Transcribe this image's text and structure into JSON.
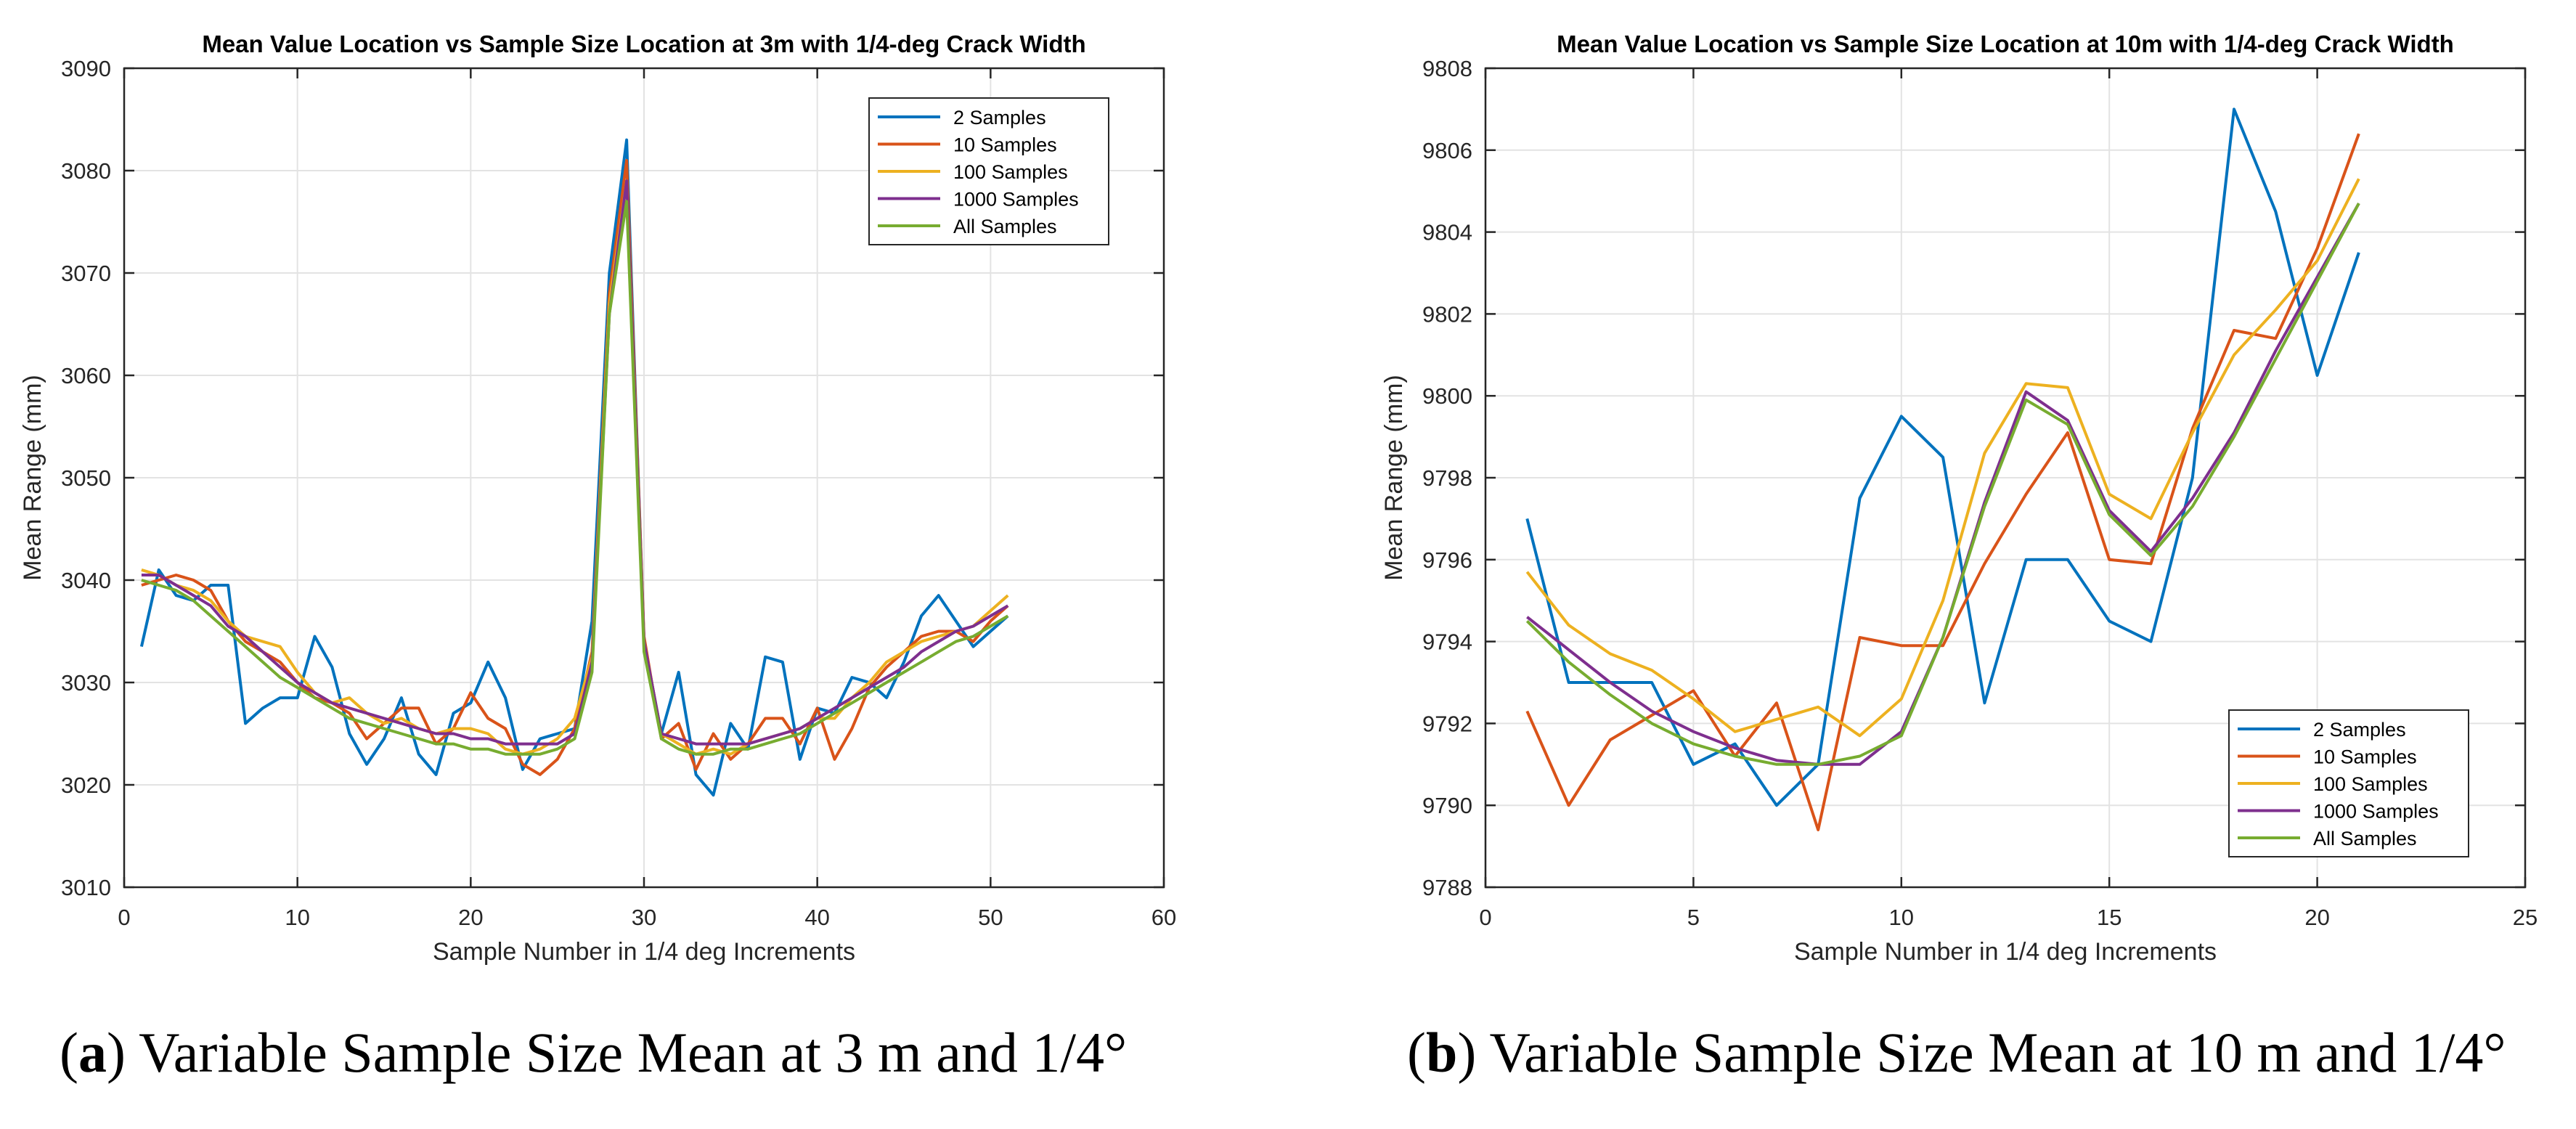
{
  "colors": {
    "s2": "#0072BD",
    "s10": "#D95319",
    "s100": "#EDB120",
    "s1000": "#7E2F8E",
    "sall": "#77AC30"
  },
  "captions": [
    {
      "letter": "a",
      "text": "Variable Sample Size Mean at 3 m and 1/4°"
    },
    {
      "letter": "b",
      "text": "Variable Sample Size Mean at 10 m and 1/4°"
    }
  ],
  "chart_data": [
    {
      "type": "line",
      "title": "Mean Value Location vs Sample Size Location at 3m with 1/4-deg Crack Width",
      "xlabel": "Sample Number in 1/4 deg Increments",
      "ylabel": "Mean Range (mm)",
      "xlim": [
        0,
        60
      ],
      "ylim": [
        3010,
        3090
      ],
      "xticks": [
        0,
        10,
        20,
        30,
        40,
        50,
        60
      ],
      "yticks": [
        3010,
        3020,
        3030,
        3040,
        3050,
        3060,
        3070,
        3080,
        3090
      ],
      "grid": true,
      "legend": "top-right",
      "x": [
        1,
        2,
        3,
        4,
        5,
        6,
        7,
        8,
        9,
        10,
        11,
        12,
        13,
        14,
        15,
        16,
        17,
        18,
        19,
        20,
        21,
        22,
        23,
        24,
        25,
        26,
        27,
        28,
        29,
        30,
        31,
        32,
        33,
        34,
        35,
        36,
        37,
        38,
        39,
        40,
        41,
        42,
        43,
        44,
        45,
        46,
        47,
        48,
        49,
        50,
        51
      ],
      "series": [
        {
          "name": "2 Samples",
          "color_key": "s2",
          "values": [
            3033.5,
            3041,
            3038.5,
            3038,
            3039.5,
            3039.5,
            3026,
            3027.5,
            3028.5,
            3028.5,
            3034.5,
            3031.5,
            3025,
            3022,
            3024.5,
            3028.5,
            3023,
            3021,
            3027,
            3028,
            3032,
            3028.5,
            3021.5,
            3024.5,
            3025,
            3025.5,
            3036,
            3070,
            3083,
            3034,
            3025,
            3031,
            3021,
            3019,
            3026,
            3023.5,
            3032.5,
            3032,
            3022.5,
            3027.5,
            3027,
            3030.5,
            3030,
            3028.5,
            3032,
            3036.5,
            3038.5,
            3036,
            3033.5,
            3035,
            3036.5
          ]
        },
        {
          "name": "10 Samples",
          "color_key": "s10",
          "values": [
            3039.5,
            3040,
            3040.5,
            3040,
            3039,
            3036,
            3034,
            3033,
            3032,
            3030,
            3028.5,
            3028,
            3027,
            3024.5,
            3026,
            3027.5,
            3027.5,
            3024,
            3025.5,
            3029,
            3026.5,
            3025.5,
            3022,
            3021,
            3022.5,
            3025.5,
            3033,
            3068,
            3081,
            3034.5,
            3024.5,
            3026,
            3021.5,
            3025,
            3022.5,
            3024,
            3026.5,
            3026.5,
            3024,
            3027.5,
            3022.5,
            3025.5,
            3029.5,
            3031.5,
            3033,
            3034.5,
            3035,
            3035,
            3034,
            3036,
            3037.5
          ]
        },
        {
          "name": "100 Samples",
          "color_key": "s100",
          "values": [
            3041,
            3040.5,
            3039.5,
            3039,
            3038,
            3036,
            3034.5,
            3034,
            3033.5,
            3031,
            3029,
            3028,
            3028.5,
            3027,
            3026,
            3026.5,
            3025.5,
            3025,
            3025.5,
            3025.5,
            3025,
            3023.5,
            3023,
            3023.5,
            3024.5,
            3026.5,
            3032.5,
            3067,
            3079,
            3034,
            3025,
            3024,
            3023,
            3023.5,
            3023,
            3024,
            3024.5,
            3025,
            3025.5,
            3026.5,
            3026.5,
            3028.5,
            3030,
            3032,
            3033,
            3034,
            3034.5,
            3035,
            3035.5,
            3037,
            3038.5
          ]
        },
        {
          "name": "1000 Samples",
          "color_key": "s1000",
          "values": [
            3040.5,
            3040.5,
            3039.5,
            3038.5,
            3037.5,
            3035.5,
            3034.5,
            3033,
            3031.5,
            3030,
            3029,
            3028,
            3027.5,
            3027,
            3026.5,
            3026,
            3025.5,
            3025,
            3025,
            3024.5,
            3024.5,
            3024,
            3024,
            3024,
            3024,
            3025,
            3032,
            3066,
            3079,
            3034,
            3025,
            3024.5,
            3024,
            3024,
            3024,
            3024,
            3024.5,
            3025,
            3025.5,
            3026.5,
            3027.5,
            3028.5,
            3029.5,
            3030.5,
            3031.5,
            3033,
            3034,
            3035,
            3035.5,
            3036.5,
            3037.5
          ]
        },
        {
          "name": "All Samples",
          "color_key": "sall",
          "values": [
            3040,
            3039.5,
            3039,
            3038,
            3036.5,
            3035,
            3033.5,
            3032,
            3030.5,
            3029.5,
            3028.5,
            3027.5,
            3026.5,
            3026,
            3025.5,
            3025,
            3024.5,
            3024,
            3024,
            3023.5,
            3023.5,
            3023,
            3023,
            3023,
            3023.5,
            3024.5,
            3031,
            3066,
            3077,
            3033,
            3024.5,
            3023.5,
            3023,
            3023,
            3023.5,
            3023.5,
            3024,
            3024.5,
            3025,
            3026,
            3027,
            3028,
            3029,
            3030,
            3031,
            3032,
            3033,
            3034,
            3034.5,
            3035.5,
            3036.5
          ]
        }
      ]
    },
    {
      "type": "line",
      "title": "Mean Value Location vs Sample Size Location at 10m with 1/4-deg Crack Width",
      "xlabel": "Sample Number in 1/4 deg Increments",
      "ylabel": "Mean Range (mm)",
      "xlim": [
        0,
        25
      ],
      "ylim": [
        9788,
        9808
      ],
      "xticks": [
        0,
        5,
        10,
        15,
        20,
        25
      ],
      "yticks": [
        9788,
        9790,
        9792,
        9794,
        9796,
        9798,
        9800,
        9802,
        9804,
        9806,
        9808
      ],
      "grid": true,
      "legend": "bottom-right",
      "x": [
        1,
        2,
        3,
        4,
        5,
        6,
        7,
        8,
        9,
        10,
        11,
        12,
        13,
        14,
        15,
        16,
        17,
        18,
        19,
        20,
        21
      ],
      "series": [
        {
          "name": "2 Samples",
          "color_key": "s2",
          "values": [
            9797,
            9793,
            9793,
            9793,
            9791,
            9791.5,
            9790,
            9791,
            9797.5,
            9799.5,
            9798.5,
            9792.5,
            9796,
            9796,
            9794.5,
            9794,
            9798,
            9807,
            9804.5,
            9800.5,
            9803.5
          ]
        },
        {
          "name": "10 Samples",
          "color_key": "s10",
          "values": [
            9792.3,
            9790,
            9791.6,
            9792.2,
            9792.8,
            9791.2,
            9792.5,
            9789.4,
            9794.1,
            9793.9,
            9793.9,
            9795.9,
            9797.6,
            9799.1,
            9796,
            9795.9,
            9799.2,
            9801.6,
            9801.4,
            9803.6,
            9806.4
          ]
        },
        {
          "name": "100 Samples",
          "color_key": "s100",
          "values": [
            9795.7,
            9794.4,
            9793.7,
            9793.3,
            9792.6,
            9791.8,
            9792.1,
            9792.4,
            9791.7,
            9792.6,
            9795,
            9798.6,
            9800.3,
            9800.2,
            9797.6,
            9797,
            9799.1,
            9801,
            9802.1,
            9803.3,
            9805.3
          ]
        },
        {
          "name": "1000 Samples",
          "color_key": "s1000",
          "values": [
            9794.6,
            9793.8,
            9793,
            9792.3,
            9791.8,
            9791.4,
            9791.1,
            9791,
            9791,
            9791.8,
            9794.1,
            9797.4,
            9800.1,
            9799.4,
            9797.2,
            9796.2,
            9797.5,
            9799.1,
            9801.1,
            9802.9,
            9804.7
          ]
        },
        {
          "name": "All Samples",
          "color_key": "sall",
          "values": [
            9794.5,
            9793.5,
            9792.7,
            9792,
            9791.5,
            9791.2,
            9791,
            9791,
            9791.2,
            9791.7,
            9794.1,
            9797.3,
            9799.9,
            9799.3,
            9797.1,
            9796.1,
            9797.3,
            9799,
            9800.9,
            9802.8,
            9804.7
          ]
        }
      ]
    }
  ]
}
